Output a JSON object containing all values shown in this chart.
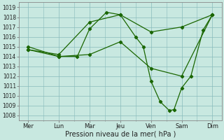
{
  "background_color": "#c8e8e0",
  "grid_color": "#88bbbb",
  "line_color": "#1a6600",
  "ylim": [
    1007.5,
    1019.5
  ],
  "yticks": [
    1008,
    1009,
    1010,
    1011,
    1012,
    1013,
    1014,
    1015,
    1016,
    1017,
    1018,
    1019
  ],
  "xtick_labels": [
    "Mer",
    "Lun",
    "Mar",
    "Jeu",
    "Ven",
    "Sam",
    "Dim"
  ],
  "xtick_positions": [
    0,
    1,
    2,
    3,
    4,
    5,
    6
  ],
  "xlabel": "Pression niveau de la mer( hPa )",
  "lines": [
    {
      "x": [
        0,
        1,
        2,
        3,
        4,
        5,
        6
      ],
      "y": [
        1014.7,
        1014.2,
        1017.5,
        1018.25,
        1016.5,
        1017.0,
        1018.25
      ]
    },
    {
      "x": [
        0,
        1,
        2,
        3,
        4,
        5,
        6
      ],
      "y": [
        1015.0,
        1014.0,
        1014.2,
        1015.5,
        1012.8,
        1012.0,
        1018.25
      ]
    },
    {
      "x": [
        0,
        1,
        1.6,
        2,
        2.55,
        3,
        3.5,
        3.75,
        4,
        4.3,
        4.6,
        4.75,
        5,
        5.3,
        5.7,
        6
      ],
      "y": [
        1014.7,
        1014.0,
        1014.0,
        1016.8,
        1018.5,
        1018.25,
        1016.0,
        1015.0,
        1011.5,
        1009.4,
        1008.5,
        1008.6,
        1010.8,
        1012.0,
        1016.7,
        1018.25
      ]
    }
  ],
  "marker": "D",
  "markersize": 2.2,
  "linewidth": 0.9,
  "ytick_fontsize": 5.5,
  "xtick_fontsize": 6.0,
  "xlabel_fontsize": 7.0
}
